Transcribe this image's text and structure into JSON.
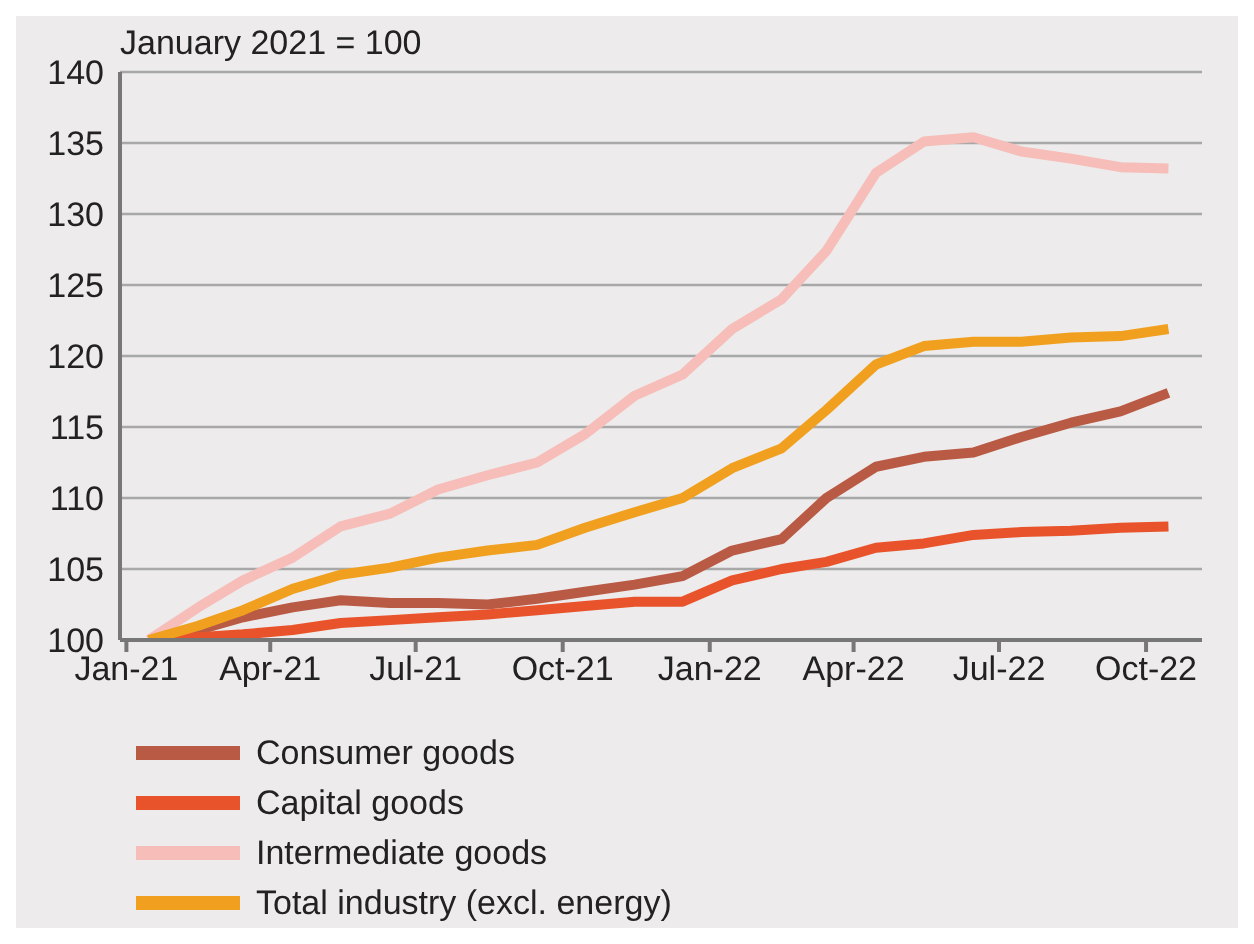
{
  "chart_data": {
    "type": "line",
    "ylabel": "January 2021 = 100",
    "x": [
      "2021-01-15",
      "2021-02-15",
      "2021-03-15",
      "2021-04-15",
      "2021-05-15",
      "2021-06-15",
      "2021-07-15",
      "2021-08-15",
      "2021-09-15",
      "2021-10-15",
      "2021-11-15",
      "2021-12-15",
      "2022-01-15",
      "2022-02-15",
      "2022-03-15",
      "2022-04-15",
      "2022-05-15",
      "2022-06-15",
      "2022-07-15",
      "2022-08-15",
      "2022-09-15",
      "2022-10-15"
    ],
    "series": [
      {
        "name": "Consumer goods",
        "color": "#b95a45",
        "values": [
          100,
          100.7,
          101.6,
          102.3,
          102.8,
          102.6,
          102.6,
          102.5,
          102.9,
          103.4,
          103.9,
          104.5,
          106.3,
          107.1,
          110.0,
          112.2,
          112.9,
          113.2,
          114.3,
          115.3,
          116.1,
          117.4
        ]
      },
      {
        "name": "Capital goods",
        "color": "#e9532b",
        "values": [
          100,
          100.2,
          100.4,
          100.7,
          101.2,
          101.4,
          101.6,
          101.8,
          102.1,
          102.4,
          102.7,
          102.7,
          104.2,
          105.0,
          105.5,
          106.5,
          106.8,
          107.4,
          107.6,
          107.7,
          107.9,
          108.0
        ]
      },
      {
        "name": "Intermediate goods",
        "color": "#f6bdb9",
        "values": [
          100,
          102.3,
          104.2,
          105.8,
          108.0,
          108.9,
          110.6,
          111.6,
          112.5,
          114.5,
          117.2,
          118.7,
          121.9,
          124.0,
          127.4,
          132.9,
          135.1,
          135.4,
          134.4,
          133.9,
          133.3,
          133.2
        ]
      },
      {
        "name": "Total industry (excl. energy)",
        "color": "#f0a01e",
        "values": [
          100,
          101.0,
          102.1,
          103.6,
          104.6,
          105.1,
          105.8,
          106.3,
          106.7,
          107.9,
          109.0,
          110.0,
          112.1,
          113.5,
          116.2,
          119.4,
          120.7,
          121.0,
          121.0,
          121.3,
          121.4,
          121.9
        ]
      }
    ],
    "xlim": [
      "2020-12-28",
      "2022-11-05"
    ],
    "xticks": [
      {
        "value": "2021-01-01",
        "label": "Jan-21"
      },
      {
        "value": "2021-04-01",
        "label": "Apr-21"
      },
      {
        "value": "2021-07-01",
        "label": "Jul-21"
      },
      {
        "value": "2021-10-01",
        "label": "Oct-21"
      },
      {
        "value": "2022-01-01",
        "label": "Jan-22"
      },
      {
        "value": "2022-04-01",
        "label": "Apr-22"
      },
      {
        "value": "2022-07-01",
        "label": "Jul-22"
      },
      {
        "value": "2022-10-01",
        "label": "Oct-22"
      }
    ],
    "ylim": [
      100,
      140
    ],
    "yticks": [
      100,
      105,
      110,
      115,
      120,
      125,
      130,
      135,
      140
    ],
    "grid": "y",
    "legend": "bottom",
    "line_style": "solid",
    "marker": "none"
  }
}
